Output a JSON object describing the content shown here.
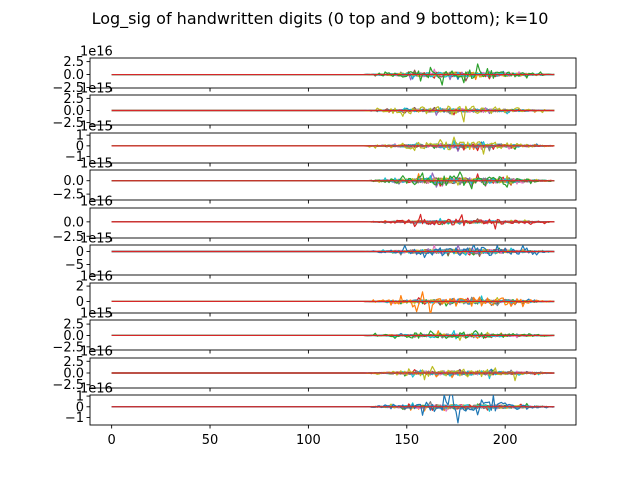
{
  "chart_data": {
    "type": "line",
    "title": "Log_sig of handwritten digits (0 top and 9 bottom); k=10",
    "xlabel": "",
    "ylabel": "",
    "grid": false,
    "xlim": [
      -11,
      236
    ],
    "x_ticks": [
      0,
      50,
      100,
      150,
      200
    ],
    "x_tick_labels": [
      "0",
      "50",
      "100",
      "150",
      "200"
    ],
    "x_max_data": 225,
    "activity_start": 128,
    "series_colors": [
      "#1f77b4",
      "#ff7f0e",
      "#2ca02c",
      "#d62728",
      "#9467bd",
      "#8c564b",
      "#e377c2",
      "#7f7f7f",
      "#bcbd22",
      "#17becf"
    ],
    "subplots": [
      {
        "digit": 0,
        "offset_text": "1e16",
        "ylim": [
          -2.6,
          3.2
        ],
        "yticks": [
          -2.5,
          0.0,
          2.5
        ],
        "ytick_labels": [
          "−2.5",
          "0.0",
          "2.5"
        ],
        "peak": 2.6,
        "dominant_series": 2
      },
      {
        "digit": 1,
        "offset_text": "1e15",
        "ylim": [
          -3.0,
          3.2
        ],
        "yticks": [
          -2.5,
          0.0,
          2.5
        ],
        "ytick_labels": [
          "−2.5",
          "0.0",
          "2.5"
        ],
        "peak": 2.8,
        "dominant_series": 8
      },
      {
        "digit": 2,
        "offset_text": "1e15",
        "ylim": [
          -1.6,
          1.2
        ],
        "yticks": [
          -1,
          0,
          1
        ],
        "ytick_labels": [
          "−1",
          "0",
          "1"
        ],
        "peak": 1.2,
        "dominant_series": 8
      },
      {
        "digit": 3,
        "offset_text": "1e15",
        "ylim": [
          -3.6,
          2.0
        ],
        "yticks": [
          -2.5,
          0.0
        ],
        "ytick_labels": [
          "−2.5",
          "0.0"
        ],
        "peak": 2.8,
        "dominant_series": 2
      },
      {
        "digit": 4,
        "offset_text": "1e16",
        "ylim": [
          -2.8,
          2.4
        ],
        "yticks": [
          -2.5,
          0.0
        ],
        "ytick_labels": [
          "−2.5",
          "0.0"
        ],
        "peak": 1.6,
        "dominant_series": 3
      },
      {
        "digit": 5,
        "offset_text": "1e15",
        "ylim": [
          -9.0,
          2.5
        ],
        "yticks": [
          -5,
          0
        ],
        "ytick_labels": [
          "−5",
          "0"
        ],
        "peak": 5.0,
        "dominant_series": 0
      },
      {
        "digit": 6,
        "offset_text": "1e16",
        "ylim": [
          -1.5,
          2.4
        ],
        "yticks": [
          0,
          2
        ],
        "ytick_labels": [
          "0",
          "2"
        ],
        "peak": 1.8,
        "dominant_series": 1
      },
      {
        "digit": 7,
        "offset_text": "1e15",
        "ylim": [
          -3.2,
          3.4
        ],
        "yticks": [
          -2.5,
          0.0,
          2.5
        ],
        "ytick_labels": [
          "−2.5",
          "0.0",
          "2.5"
        ],
        "peak": 2.2,
        "dominant_series": 2
      },
      {
        "digit": 8,
        "offset_text": "1e16",
        "ylim": [
          -3.2,
          3.2
        ],
        "yticks": [
          -2.5,
          0.0,
          2.5
        ],
        "ytick_labels": [
          "−2.5",
          "0.0",
          "2.5"
        ],
        "peak": 2.4,
        "dominant_series": 8
      },
      {
        "digit": 9,
        "offset_text": "1e16",
        "ylim": [
          -1.7,
          1.1
        ],
        "yticks": [
          -1,
          0,
          1
        ],
        "ytick_labels": [
          "−1",
          "0",
          "1"
        ],
        "peak": 1.5,
        "dominant_series": 0
      }
    ]
  }
}
